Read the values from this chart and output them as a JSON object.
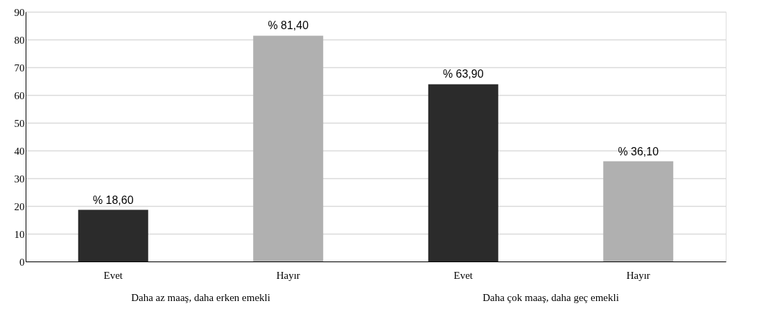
{
  "chart_data": {
    "type": "bar",
    "categories": [
      "Evet",
      "Hayır",
      "Evet",
      "Hayır"
    ],
    "values": [
      18.6,
      81.4,
      63.9,
      36.1
    ],
    "colors": [
      "#2b2b2b",
      "#b0b0b0",
      "#2b2b2b",
      "#b0b0b0"
    ],
    "value_labels": [
      "% 18,60",
      "% 81,40",
      "% 63,90",
      "% 36,10"
    ],
    "annotations": [
      "Daha az maaş, daha erken emekli",
      "Daha çok maaş, daha geç emekli"
    ],
    "ylim": [
      0,
      90
    ],
    "yticks": [
      0,
      10,
      20,
      30,
      40,
      50,
      60,
      70,
      80,
      90
    ],
    "grid": "y"
  }
}
